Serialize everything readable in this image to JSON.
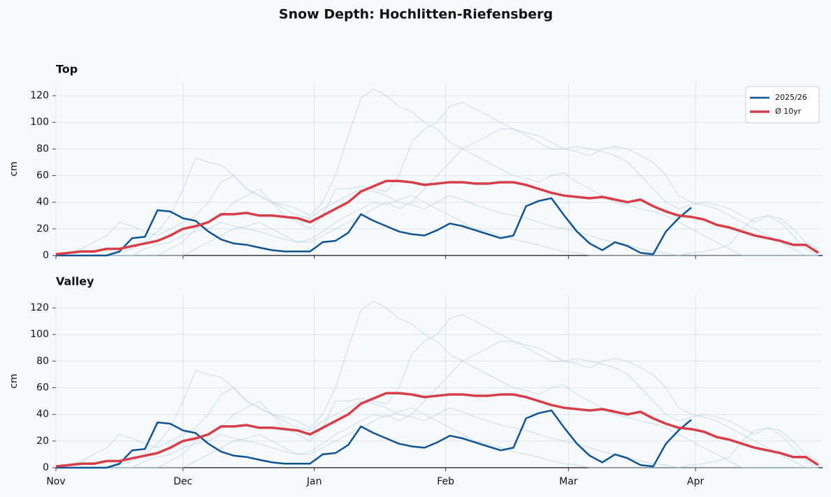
{
  "title": "Snow Depth: Hochlitten-Riefensberg",
  "chart_data": [
    {
      "type": "line",
      "title": "Top",
      "y_label": "cm",
      "x": [
        0,
        3,
        6,
        9,
        12,
        15,
        18,
        21,
        24,
        27,
        30,
        33,
        36,
        39,
        42,
        45,
        48,
        51,
        54,
        57,
        60,
        63,
        66,
        69,
        72,
        75,
        78,
        81,
        84,
        87,
        90,
        93,
        96,
        99,
        102,
        105,
        108,
        111,
        114,
        117,
        120,
        123,
        126,
        129,
        132,
        135,
        138,
        141,
        144,
        147,
        150,
        153,
        156,
        159,
        162,
        165,
        168,
        171,
        174,
        177,
        180
      ],
      "xlim": [
        0,
        181
      ],
      "ylim": [
        0,
        130
      ],
      "yticks": [
        0,
        20,
        40,
        60,
        80,
        100,
        120
      ],
      "grid": true,
      "legend": "upper right",
      "series": [
        {
          "color": "#a6c8e0",
          "values": [
            0,
            0,
            0,
            0,
            0,
            2,
            5,
            10,
            18,
            30,
            50,
            73,
            70,
            68,
            60,
            50,
            45,
            40,
            38,
            35,
            30,
            40,
            60,
            90,
            118,
            125,
            120,
            112,
            108,
            100,
            95,
            85,
            80,
            75,
            70,
            65,
            60,
            58,
            55,
            60,
            62,
            55,
            50,
            45,
            40,
            38,
            35,
            33,
            30,
            25,
            20,
            15,
            10,
            5,
            0,
            0,
            0,
            0,
            0,
            0,
            0
          ]
        },
        {
          "color": "#a6c8e0",
          "values": [
            0,
            0,
            0,
            0,
            0,
            0,
            0,
            0,
            0,
            5,
            10,
            20,
            25,
            30,
            40,
            45,
            50,
            40,
            30,
            25,
            20,
            30,
            50,
            50,
            52,
            50,
            48,
            60,
            85,
            95,
            100,
            112,
            115,
            110,
            105,
            100,
            95,
            90,
            85,
            80,
            80,
            78,
            75,
            80,
            82,
            80,
            75,
            70,
            60,
            45,
            40,
            38,
            35,
            30,
            25,
            20,
            15,
            10,
            5,
            0,
            0
          ]
        },
        {
          "color": "#a6c8e0",
          "values": [
            0,
            2,
            5,
            10,
            15,
            25,
            22,
            18,
            15,
            20,
            25,
            30,
            40,
            55,
            60,
            50,
            45,
            40,
            35,
            30,
            28,
            35,
            40,
            45,
            50,
            48,
            45,
            40,
            38,
            35,
            40,
            45,
            42,
            38,
            35,
            32,
            30,
            28,
            25,
            22,
            20,
            18,
            15,
            12,
            10,
            8,
            5,
            3,
            2,
            0,
            0,
            0,
            0,
            0,
            0,
            0,
            0,
            0,
            0,
            0,
            0
          ]
        },
        {
          "color": "#a6c8e0",
          "values": [
            0,
            0,
            0,
            0,
            0,
            0,
            0,
            0,
            0,
            0,
            0,
            5,
            10,
            15,
            20,
            22,
            25,
            20,
            15,
            10,
            10,
            15,
            20,
            25,
            30,
            35,
            40,
            35,
            40,
            50,
            60,
            70,
            80,
            85,
            90,
            95,
            95,
            92,
            90,
            85,
            80,
            82,
            80,
            78,
            75,
            70,
            60,
            50,
            40,
            35,
            38,
            40,
            38,
            35,
            30,
            25,
            30,
            28,
            20,
            10,
            5
          ]
        },
        {
          "color": "#a6c8e0",
          "values": [
            0,
            0,
            0,
            0,
            0,
            0,
            0,
            5,
            8,
            10,
            15,
            18,
            20,
            25,
            22,
            20,
            18,
            15,
            12,
            10,
            12,
            18,
            25,
            30,
            35,
            40,
            38,
            42,
            45,
            40,
            35,
            30,
            25,
            20,
            18,
            15,
            12,
            10,
            8,
            5,
            3,
            2,
            0,
            0,
            0,
            0,
            0,
            0,
            0,
            0,
            2,
            3,
            5,
            8,
            20,
            28,
            30,
            25,
            15,
            5,
            0
          ]
        },
        {
          "name": "2025/26",
          "color": "#0f5391",
          "values": [
            0,
            0,
            0,
            0,
            0,
            3,
            13,
            14,
            34,
            33,
            28,
            26,
            18,
            12,
            9,
            8,
            6,
            4,
            3,
            3,
            3,
            10,
            11,
            17,
            31,
            26,
            22,
            18,
            16,
            15,
            19,
            24,
            22,
            19,
            16,
            13,
            15,
            37,
            41,
            43,
            30,
            18,
            9,
            4,
            10,
            7,
            2,
            1,
            18,
            28,
            36,
            null,
            null,
            null,
            null,
            null,
            null,
            null,
            null,
            null,
            null
          ]
        },
        {
          "name": "Ø 10yr",
          "color": "#d63f4a",
          "values": [
            1,
            2,
            3,
            3,
            5,
            5,
            7,
            9,
            11,
            15,
            20,
            22,
            25,
            31,
            31,
            32,
            30,
            30,
            29,
            28,
            25,
            30,
            35,
            40,
            48,
            52,
            56,
            56,
            55,
            53,
            54,
            55,
            55,
            54,
            54,
            55,
            55,
            53,
            50,
            47,
            45,
            44,
            43,
            44,
            42,
            40,
            42,
            37,
            33,
            30,
            29,
            27,
            23,
            21,
            18,
            15,
            13,
            11,
            8,
            8,
            2
          ]
        }
      ]
    },
    {
      "type": "line",
      "title": "Valley",
      "y_label": "cm",
      "x": [
        0,
        3,
        6,
        9,
        12,
        15,
        18,
        21,
        24,
        27,
        30,
        33,
        36,
        39,
        42,
        45,
        48,
        51,
        54,
        57,
        60,
        63,
        66,
        69,
        72,
        75,
        78,
        81,
        84,
        87,
        90,
        93,
        96,
        99,
        102,
        105,
        108,
        111,
        114,
        117,
        120,
        123,
        126,
        129,
        132,
        135,
        138,
        141,
        144,
        147,
        150,
        153,
        156,
        159,
        162,
        165,
        168,
        171,
        174,
        177,
        180
      ],
      "xlim": [
        0,
        181
      ],
      "ylim": [
        0,
        130
      ],
      "yticks": [
        0,
        20,
        40,
        60,
        80,
        100,
        120
      ],
      "grid": true,
      "xticks": [
        {
          "value": 0,
          "label": "Nov"
        },
        {
          "value": 30,
          "label": "Dec"
        },
        {
          "value": 61,
          "label": "Jan"
        },
        {
          "value": 92,
          "label": "Feb"
        },
        {
          "value": 121,
          "label": "Mar"
        },
        {
          "value": 151,
          "label": "Apr"
        }
      ],
      "series": [
        {
          "color": "#a6c8e0",
          "values": [
            0,
            0,
            0,
            0,
            0,
            2,
            5,
            10,
            18,
            30,
            50,
            73,
            70,
            68,
            60,
            50,
            45,
            40,
            38,
            35,
            30,
            40,
            60,
            90,
            118,
            125,
            120,
            112,
            108,
            100,
            95,
            85,
            80,
            75,
            70,
            65,
            60,
            58,
            55,
            60,
            62,
            55,
            50,
            45,
            40,
            38,
            35,
            33,
            30,
            25,
            20,
            15,
            10,
            5,
            0,
            0,
            0,
            0,
            0,
            0,
            0
          ]
        },
        {
          "color": "#a6c8e0",
          "values": [
            0,
            0,
            0,
            0,
            0,
            0,
            0,
            0,
            0,
            5,
            10,
            20,
            25,
            30,
            40,
            45,
            50,
            40,
            30,
            25,
            20,
            30,
            50,
            50,
            52,
            50,
            48,
            60,
            85,
            95,
            100,
            112,
            115,
            110,
            105,
            100,
            95,
            90,
            85,
            80,
            80,
            78,
            75,
            80,
            82,
            80,
            75,
            70,
            60,
            45,
            40,
            38,
            35,
            30,
            25,
            20,
            15,
            10,
            5,
            0,
            0
          ]
        },
        {
          "color": "#a6c8e0",
          "values": [
            0,
            2,
            5,
            10,
            15,
            25,
            22,
            18,
            15,
            20,
            25,
            30,
            40,
            55,
            60,
            50,
            45,
            40,
            35,
            30,
            28,
            35,
            40,
            45,
            50,
            48,
            45,
            40,
            38,
            35,
            40,
            45,
            42,
            38,
            35,
            32,
            30,
            28,
            25,
            22,
            20,
            18,
            15,
            12,
            10,
            8,
            5,
            3,
            2,
            0,
            0,
            0,
            0,
            0,
            0,
            0,
            0,
            0,
            0,
            0,
            0
          ]
        },
        {
          "color": "#a6c8e0",
          "values": [
            0,
            0,
            0,
            0,
            0,
            0,
            0,
            0,
            0,
            0,
            0,
            5,
            10,
            15,
            20,
            22,
            25,
            20,
            15,
            10,
            10,
            15,
            20,
            25,
            30,
            35,
            40,
            35,
            40,
            50,
            60,
            70,
            80,
            85,
            90,
            95,
            95,
            92,
            90,
            85,
            80,
            82,
            80,
            78,
            75,
            70,
            60,
            50,
            40,
            35,
            38,
            40,
            38,
            35,
            30,
            25,
            30,
            28,
            20,
            10,
            5
          ]
        },
        {
          "color": "#a6c8e0",
          "values": [
            0,
            0,
            0,
            0,
            0,
            0,
            0,
            5,
            8,
            10,
            15,
            18,
            20,
            25,
            22,
            20,
            18,
            15,
            12,
            10,
            12,
            18,
            25,
            30,
            35,
            40,
            38,
            42,
            45,
            40,
            35,
            30,
            25,
            20,
            18,
            15,
            12,
            10,
            8,
            5,
            3,
            2,
            0,
            0,
            0,
            0,
            0,
            0,
            0,
            0,
            2,
            3,
            5,
            8,
            20,
            28,
            30,
            25,
            15,
            5,
            0
          ]
        },
        {
          "color": "#0f5391",
          "values": [
            0,
            0,
            0,
            0,
            0,
            3,
            13,
            14,
            34,
            33,
            28,
            26,
            18,
            12,
            9,
            8,
            6,
            4,
            3,
            3,
            3,
            10,
            11,
            17,
            31,
            26,
            22,
            18,
            16,
            15,
            19,
            24,
            22,
            19,
            16,
            13,
            15,
            37,
            41,
            43,
            30,
            18,
            9,
            4,
            10,
            7,
            2,
            1,
            18,
            28,
            36,
            null,
            null,
            null,
            null,
            null,
            null,
            null,
            null,
            null,
            null
          ]
        },
        {
          "color": "#d63f4a",
          "values": [
            1,
            2,
            3,
            3,
            5,
            5,
            7,
            9,
            11,
            15,
            20,
            22,
            25,
            31,
            31,
            32,
            30,
            30,
            29,
            28,
            25,
            30,
            35,
            40,
            48,
            52,
            56,
            56,
            55,
            53,
            54,
            55,
            55,
            54,
            54,
            55,
            55,
            53,
            50,
            47,
            45,
            44,
            43,
            44,
            42,
            40,
            42,
            37,
            33,
            30,
            29,
            27,
            23,
            21,
            18,
            15,
            13,
            11,
            8,
            8,
            2
          ]
        }
      ]
    }
  ]
}
